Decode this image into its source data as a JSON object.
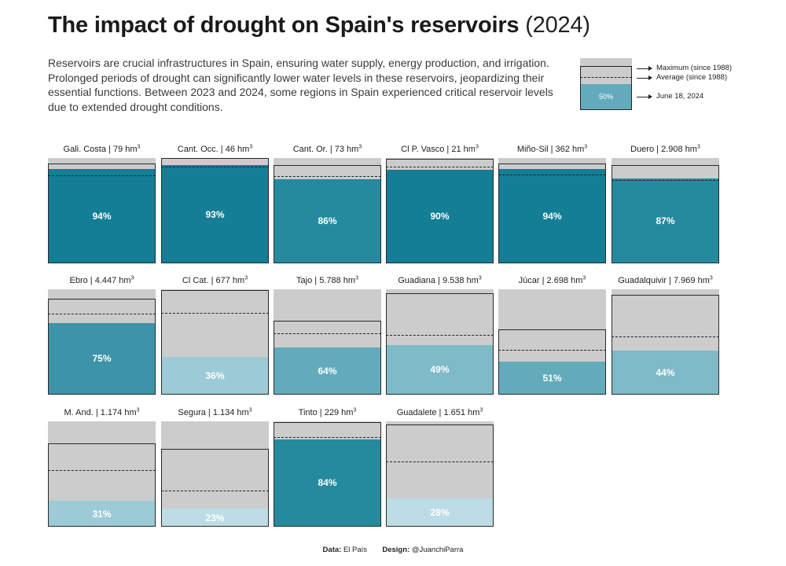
{
  "title": "The impact of drought on Spain's reservoirs",
  "title_year": "(2024)",
  "description": "Reservoirs are crucial infrastructures in Spain, ensuring water supply, energy production, and irrigation. Prolonged periods of drought can significantly lower water levels in these reservoirs, jeopardizing their essential functions. Between 2023 and 2024, some regions in Spain experienced critical reservoir levels due to extended drought conditions.",
  "legend": {
    "max_label": "Maximum (since 1988)",
    "avg_label": "Average (since 1988)",
    "current_label": "June 18, 2024",
    "sample_pct": "50%"
  },
  "footer": {
    "data_label": "Data:",
    "data_value": "El País",
    "design_label": "Design:",
    "design_value": "@JuanchiParra"
  },
  "colors": {
    "background_grey": "#cccccc",
    "fill_scale": [
      "#bcdde5",
      "#9ccbd7",
      "#7fbac9",
      "#63abbc",
      "#3d93a8",
      "#268a9f",
      "#137e96"
    ]
  },
  "chart_data": {
    "type": "bar",
    "unit": "hm³",
    "panels": [
      {
        "basin": "Gali. Costa",
        "capacity": "79",
        "current_pct": 94,
        "label": "94%",
        "capacity_rel": 0.95,
        "average_pct": 87
      },
      {
        "basin": "Cant. Occ.",
        "capacity": "46",
        "current_pct": 93,
        "label": "93%",
        "capacity_rel": 1.0,
        "average_pct": 91
      },
      {
        "basin": "Cant. Or.",
        "capacity": "73",
        "current_pct": 86,
        "label": "86%",
        "capacity_rel": 0.93,
        "average_pct": 88
      },
      {
        "basin": "Cl P. Vasco",
        "capacity": "21",
        "current_pct": 90,
        "label": "90%",
        "capacity_rel": 0.99,
        "average_pct": 92
      },
      {
        "basin": "Miño-Sil",
        "capacity": "362",
        "current_pct": 94,
        "label": "94%",
        "capacity_rel": 0.95,
        "average_pct": 88
      },
      {
        "basin": "Duero",
        "capacity": "2.908",
        "current_pct": 87,
        "label": "87%",
        "capacity_rel": 0.93,
        "average_pct": 84
      },
      {
        "basin": "Ebro",
        "capacity": "4.447",
        "current_pct": 75,
        "label": "75%",
        "capacity_rel": 0.91,
        "average_pct": 84
      },
      {
        "basin": "Cl Cat.",
        "capacity": "677",
        "current_pct": 36,
        "label": "36%",
        "capacity_rel": 0.99,
        "average_pct": 78
      },
      {
        "basin": "Tajo",
        "capacity": "5.788",
        "current_pct": 64,
        "label": "64%",
        "capacity_rel": 0.7,
        "average_pct": 82
      },
      {
        "basin": "Guadiana",
        "capacity": "9.538",
        "current_pct": 49,
        "label": "49%",
        "capacity_rel": 0.96,
        "average_pct": 58
      },
      {
        "basin": "Júcar",
        "capacity": "2.698",
        "current_pct": 51,
        "label": "51%",
        "capacity_rel": 0.62,
        "average_pct": 68
      },
      {
        "basin": "Guadalquivir",
        "capacity": "7.969",
        "current_pct": 44,
        "label": "44%",
        "capacity_rel": 0.95,
        "average_pct": 57
      },
      {
        "basin": "M. And.",
        "capacity": "1.174",
        "current_pct": 31,
        "label": "31%",
        "capacity_rel": 0.79,
        "average_pct": 67
      },
      {
        "basin": "Segura",
        "capacity": "1.134",
        "current_pct": 23,
        "label": "23%",
        "capacity_rel": 0.74,
        "average_pct": 45
      },
      {
        "basin": "Tinto",
        "capacity": "229",
        "current_pct": 84,
        "label": "84%",
        "capacity_rel": 0.99,
        "average_pct": 85
      },
      {
        "basin": "Guadalete",
        "capacity": "1.651",
        "current_pct": 28,
        "label": "28%",
        "capacity_rel": 0.97,
        "average_pct": 63
      }
    ]
  }
}
